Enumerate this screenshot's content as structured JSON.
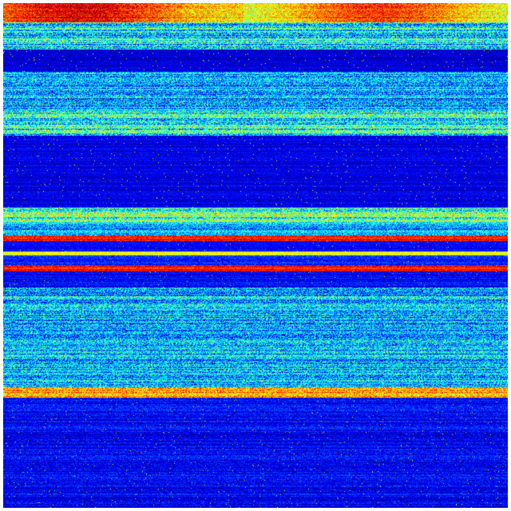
{
  "image": {
    "kind": "spectrogram heatmap",
    "colormap": "jet",
    "colormap_stops": [
      "#00007f",
      "#0000ff",
      "#00ffff",
      "#ffff00",
      "#ff0000",
      "#7f0000"
    ],
    "background_color": "#00008f",
    "border_color": "#ffffff"
  }
}
